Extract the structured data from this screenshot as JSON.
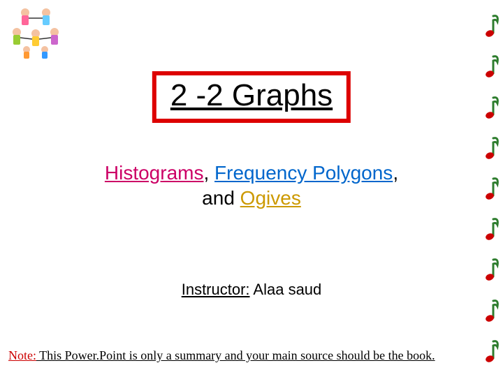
{
  "title": "2 -2 Graphs",
  "subtitle": {
    "word1": "Histograms",
    "sep1": ", ",
    "word2": "Frequency Polygons",
    "sep2": ",",
    "word3": "and ",
    "word4": "Ogives"
  },
  "instructor": {
    "label": "Instructor:",
    "name": " Alaa saud"
  },
  "note": {
    "label": "Note:",
    "rest": " This Power.Point is only a summary and your main source should be the book."
  },
  "colors": {
    "title_border": "#dd0000",
    "word1": "#cc0066",
    "word2": "#0066cc",
    "word4": "#cc9900",
    "note_label": "#cc0000",
    "music_green": "#2e7d2e",
    "music_red": "#cc0000"
  },
  "decor": {
    "music_count": 9
  }
}
